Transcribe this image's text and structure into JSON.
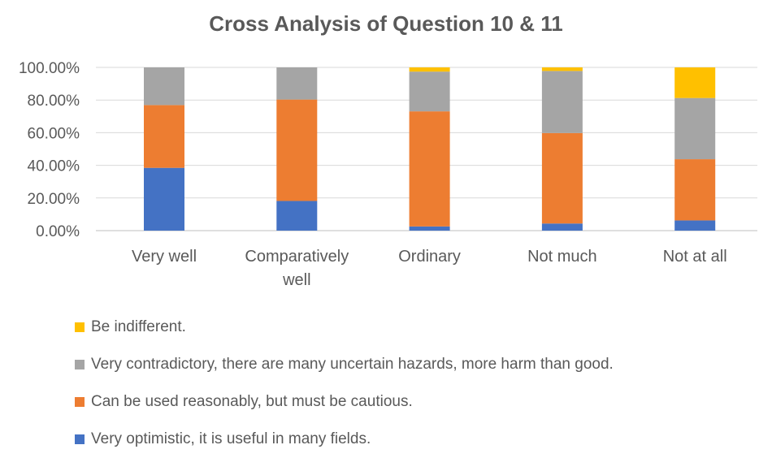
{
  "chart_data": {
    "type": "bar",
    "stacked": true,
    "title": "Cross Analysis of Question 10 & 11",
    "categories": [
      "Very well",
      "Comparatively well",
      "Ordinary",
      "Not much",
      "Not at all"
    ],
    "series": [
      {
        "name": "Very optimistic, it is useful in many fields.",
        "color": "#4472C4",
        "values": [
          38.46,
          18.18,
          2.56,
          4.35,
          6.25
        ]
      },
      {
        "name": "Can be used reasonably, but must be cautious.",
        "color": "#ED7D31",
        "values": [
          38.46,
          62.12,
          70.51,
          55.43,
          37.5
        ]
      },
      {
        "name": "Very contradictory, there are many uncertain hazards, more harm than good.",
        "color": "#A5A5A5",
        "values": [
          23.08,
          19.7,
          24.36,
          38.04,
          37.5
        ]
      },
      {
        "name": "Be indifferent.",
        "color": "#FFC000",
        "values": [
          0,
          0,
          2.57,
          2.18,
          18.75
        ]
      }
    ],
    "yticks": [
      "0.00%",
      "20.00%",
      "40.00%",
      "60.00%",
      "80.00%",
      "100.00%"
    ],
    "ylim": [
      0,
      100
    ],
    "legend_position": "bottom",
    "legend_order": [
      3,
      2,
      1,
      0
    ],
    "grid": true
  }
}
